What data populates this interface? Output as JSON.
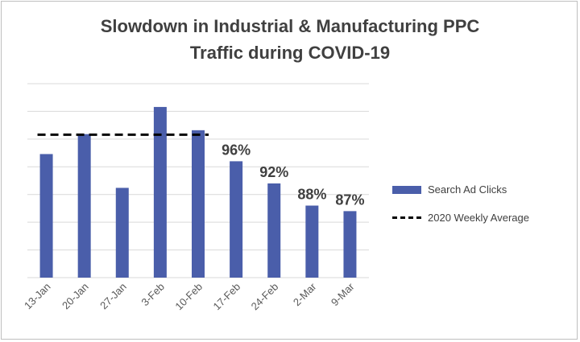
{
  "chart_data": {
    "type": "bar",
    "title_lines": [
      "Slowdown in Industrial & Manufacturing PPC",
      "Traffic during COVID-19"
    ],
    "categories": [
      "13-Jan",
      "20-Jan",
      "27-Jan",
      "3-Feb",
      "10-Feb",
      "17-Feb",
      "24-Feb",
      "2-Mar",
      "9-Mar"
    ],
    "series": [
      {
        "name": "Search Ad Clicks",
        "type": "bar",
        "color": "#4a5eaa",
        "values": [
          97.3,
          100.9,
          91.2,
          105.8,
          101.6,
          96.0,
          92.0,
          88.0,
          87.0
        ],
        "data_labels": [
          "",
          "",
          "",
          "",
          "",
          "96%",
          "92%",
          "88%",
          "87%"
        ]
      },
      {
        "name": "2020 Weekly Average",
        "type": "line",
        "style": "dashed",
        "color": "#000000",
        "value": 100.8,
        "x_range": [
          "13-Jan",
          "10-Feb"
        ]
      }
    ],
    "ylim": [
      75,
      110
    ],
    "grid": true,
    "legend_position": "right"
  }
}
